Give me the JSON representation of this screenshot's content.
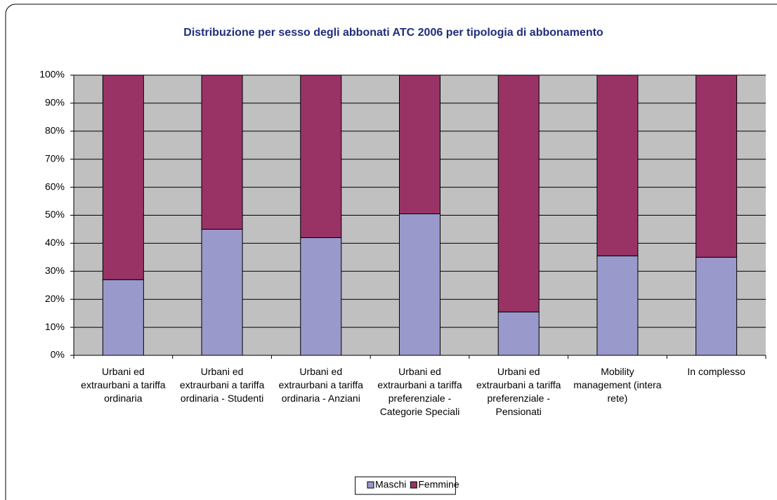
{
  "chart_data": {
    "type": "stacked_bar",
    "title": "Distribuzione per sesso degli abbonati ATC 2006 per tipologia di abbonamento",
    "categories": [
      "Urbani ed extraurbani a tariffa ordinaria",
      "Urbani ed extraurbani a tariffa ordinaria - Studenti",
      "Urbani ed extraurbani a tariffa ordinaria - Anziani",
      "Urbani ed extraurbani a tariffa preferenziale - Categorie Speciali",
      "Urbani ed extraurbani a tariffa preferenziale - Pensionati",
      "Mobility management (intera rete)",
      "In complesso"
    ],
    "series": [
      {
        "name": "Maschi",
        "color": "#9999cc",
        "values": [
          27,
          45,
          42,
          50.5,
          15.5,
          35.5,
          35
        ]
      },
      {
        "name": "Femmine",
        "color": "#993366",
        "values": [
          73,
          55,
          58,
          49.5,
          84.5,
          64.5,
          65
        ]
      }
    ],
    "ylim": [
      0,
      100
    ],
    "yticks": [
      {
        "value": 0,
        "label": "0%"
      },
      {
        "value": 10,
        "label": "10%"
      },
      {
        "value": 20,
        "label": "20%"
      },
      {
        "value": 30,
        "label": "30%"
      },
      {
        "value": 40,
        "label": "40%"
      },
      {
        "value": 50,
        "label": "50%"
      },
      {
        "value": 60,
        "label": "60%"
      },
      {
        "value": 70,
        "label": "70%"
      },
      {
        "value": 80,
        "label": "80%"
      },
      {
        "value": 90,
        "label": "90%"
      },
      {
        "value": 100,
        "label": "100%"
      }
    ],
    "grid": true,
    "legend": "bottom"
  }
}
